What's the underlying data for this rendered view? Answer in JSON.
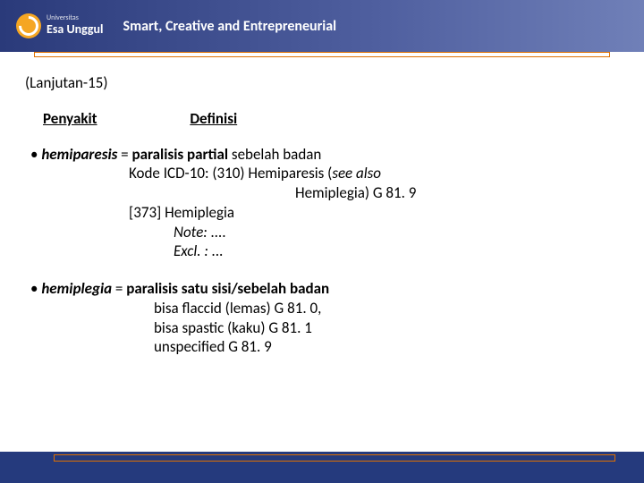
{
  "header": {
    "university_small": "Universitas",
    "university_big": "Esa Unggul",
    "tagline": "Smart, Creative and Entrepreneurial"
  },
  "content": {
    "continuation": "(Lanjutan-15)",
    "col_penyakit": "Penyakit",
    "col_definisi": "Definisi",
    "hemiparesis": {
      "term": "hemiparesis",
      "eq": " = ",
      "def_bold": "paralisis partial",
      "def_rest": " sebelah badan",
      "line2a": "Kode ICD-10: (310)  Hemiparesis (",
      "line2b": "see also",
      "line3": "Hemiplegia) G 81. 9",
      "line4": "[373]  Hemiplegia",
      "line5": "Note: ....",
      "line6": "Excl. : ..."
    },
    "hemiplegia": {
      "term": "hemiplegia",
      "eq": "   = ",
      "def_bold": "paralisis satu sisi/sebelah badan",
      "line2": "bisa flaccid (lemas) G 81. 0,",
      "line3": "bisa spastic (kaku) G 81. 1",
      "line4": "unspecified  G 81. 9"
    }
  },
  "colors": {
    "header_gradient_start": "#2a3a7a",
    "header_gradient_end": "#7080b8",
    "orange_border": "#e07000",
    "footer_blue": "#253a7d",
    "logo_orange": "#f5a623",
    "text": "#000000",
    "white": "#ffffff"
  }
}
